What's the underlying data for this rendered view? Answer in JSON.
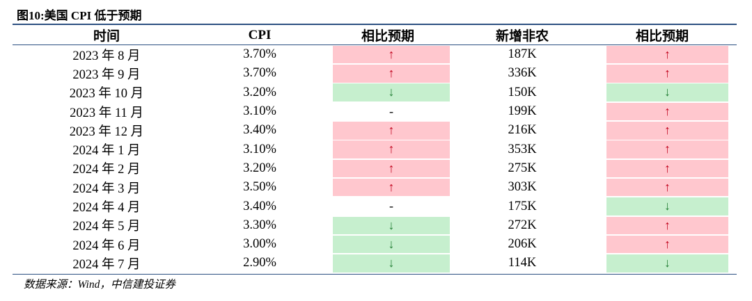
{
  "title": "图10:美国 CPI 低于预期",
  "headers": [
    "时间",
    "CPI",
    "相比预期",
    "新增非农",
    "相比预期"
  ],
  "rows": [
    {
      "date": "2023 年 8 月",
      "cpi": "3.70%",
      "cpi_vs": "↑",
      "nfp": "187K",
      "nfp_vs": "↑"
    },
    {
      "date": "2023 年 9 月",
      "cpi": "3.70%",
      "cpi_vs": "↑",
      "nfp": "336K",
      "nfp_vs": "↑"
    },
    {
      "date": "2023 年 10 月",
      "cpi": "3.20%",
      "cpi_vs": "↓",
      "nfp": "150K",
      "nfp_vs": "↓"
    },
    {
      "date": "2023 年 11 月",
      "cpi": "3.10%",
      "cpi_vs": "-",
      "nfp": "199K",
      "nfp_vs": "↑"
    },
    {
      "date": "2023 年 12 月",
      "cpi": "3.40%",
      "cpi_vs": "↑",
      "nfp": "216K",
      "nfp_vs": "↑"
    },
    {
      "date": "2024 年 1 月",
      "cpi": "3.10%",
      "cpi_vs": "↑",
      "nfp": "353K",
      "nfp_vs": "↑"
    },
    {
      "date": "2024 年 2 月",
      "cpi": "3.20%",
      "cpi_vs": "↑",
      "nfp": "275K",
      "nfp_vs": "↑"
    },
    {
      "date": "2024 年 3 月",
      "cpi": "3.50%",
      "cpi_vs": "↑",
      "nfp": "303K",
      "nfp_vs": "↑"
    },
    {
      "date": "2024 年 4 月",
      "cpi": "3.40%",
      "cpi_vs": "-",
      "nfp": "175K",
      "nfp_vs": "↓"
    },
    {
      "date": "2024 年 5 月",
      "cpi": "3.30%",
      "cpi_vs": "↓",
      "nfp": "272K",
      "nfp_vs": "↑"
    },
    {
      "date": "2024 年 6 月",
      "cpi": "3.00%",
      "cpi_vs": "↓",
      "nfp": "206K",
      "nfp_vs": "↑"
    },
    {
      "date": "2024 年 7 月",
      "cpi": "2.90%",
      "cpi_vs": "↓",
      "nfp": "114K",
      "nfp_vs": "↓"
    }
  ],
  "colors": {
    "up_bg": "#ffc7ce",
    "up_fg": "#c0001a",
    "down_bg": "#c6efce",
    "down_fg": "#1e7b30",
    "rule": "#2b4f81"
  },
  "source": "数据来源：Wind，中信建投证券"
}
